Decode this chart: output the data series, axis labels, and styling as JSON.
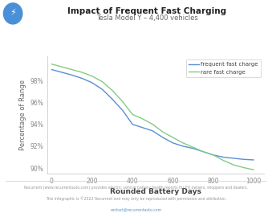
{
  "title": "Impact of Frequent Fast Charging",
  "subtitle": "Tesla Model Y – 4,400 vehicles",
  "xlabel": "Rounded Battery Days",
  "ylabel": "Percentage of Range",
  "icon_color": "#4a90d9",
  "frequent_color": "#5b8ed6",
  "rare_color": "#82cc82",
  "background_color": "#ffffff",
  "footer_text1": "Recurrent (www.recurrentauto.com) provides electric vehicle battery health reports for EV owners, shoppers and dealers.",
  "footer_text2": "This infographic is ©2022 Recurrent and may only be reproduced with permission and attribution.",
  "footer_text3": "contact@recurrentauto.com",
  "frequent_x": [
    0,
    50,
    100,
    150,
    200,
    250,
    300,
    350,
    400,
    450,
    500,
    550,
    600,
    650,
    700,
    750,
    800,
    850,
    900,
    950,
    1000
  ],
  "frequent_y": [
    99.0,
    98.75,
    98.5,
    98.2,
    97.8,
    97.2,
    96.3,
    95.3,
    94.0,
    93.7,
    93.4,
    92.8,
    92.3,
    92.0,
    91.8,
    91.5,
    91.2,
    91.0,
    90.9,
    90.8,
    90.75
  ],
  "rare_x": [
    0,
    50,
    100,
    150,
    200,
    250,
    300,
    350,
    400,
    450,
    500,
    550,
    600,
    650,
    700,
    750,
    800,
    850,
    900,
    950,
    1000
  ],
  "rare_y": [
    99.5,
    99.25,
    99.0,
    98.75,
    98.4,
    97.9,
    97.1,
    96.1,
    94.9,
    94.5,
    94.0,
    93.3,
    92.8,
    92.3,
    91.9,
    91.5,
    91.2,
    90.7,
    90.3,
    90.05,
    89.85
  ],
  "xlim": [
    -20,
    1050
  ],
  "ylim": [
    89.5,
    100.2
  ],
  "yticks": [
    90,
    92,
    94,
    96,
    98
  ],
  "ytick_labels": [
    "90%",
    "92%",
    "94%",
    "96%",
    "98%"
  ],
  "xticks": [
    0,
    200,
    400,
    600,
    800,
    1000
  ],
  "spine_color": "#cccccc",
  "tick_color": "#888888",
  "footer_color": "#999999",
  "footer_link_color": "#5599cc"
}
